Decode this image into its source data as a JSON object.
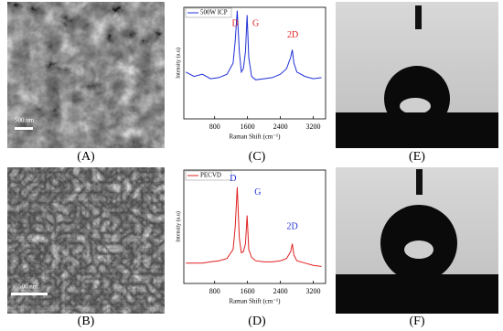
{
  "panels": [
    {
      "label": "(A)",
      "scale_bar": "500 nm"
    },
    {
      "label": "(C)"
    },
    {
      "label": "(E)"
    },
    {
      "label": "(B)",
      "scale_bar": "500 nm"
    },
    {
      "label": "(D)"
    },
    {
      "label": "(F)"
    }
  ],
  "chart_data": [
    {
      "type": "line",
      "xlabel": "Raman Shift (cm⁻¹)",
      "ylabel": "Intensity (a.u)",
      "xlim": [
        50,
        3500
      ],
      "ylim": [
        0,
        1
      ],
      "xticks": [
        800,
        1600,
        2400,
        3200
      ],
      "x": [
        100,
        300,
        500,
        700,
        900,
        1100,
        1250,
        1300,
        1350,
        1400,
        1450,
        1500,
        1550,
        1590,
        1630,
        1700,
        1800,
        2000,
        2200,
        2400,
        2550,
        2650,
        2690,
        2730,
        2800,
        3000,
        3200,
        3400
      ],
      "series": [
        {
          "name": "500W ICP",
          "color": "#1f2fd6",
          "values": [
            0.42,
            0.38,
            0.4,
            0.36,
            0.37,
            0.4,
            0.5,
            0.7,
            0.97,
            0.6,
            0.42,
            0.45,
            0.6,
            0.93,
            0.55,
            0.38,
            0.35,
            0.36,
            0.37,
            0.4,
            0.45,
            0.55,
            0.62,
            0.5,
            0.42,
            0.38,
            0.36,
            0.37
          ]
        }
      ],
      "annotations": [
        "D",
        "G",
        "2D"
      ],
      "annotation_color": "#e02020"
    },
    {
      "type": "line",
      "xlabel": "Raman Shift (cm⁻¹)",
      "ylabel": "Intensity (a.u)",
      "xlim": [
        50,
        3500
      ],
      "ylim": [
        0,
        1
      ],
      "xticks": [
        800,
        1600,
        2400,
        3200
      ],
      "x": [
        100,
        300,
        500,
        700,
        900,
        1100,
        1250,
        1300,
        1350,
        1400,
        1450,
        1500,
        1550,
        1590,
        1630,
        1700,
        1800,
        2000,
        2200,
        2400,
        2550,
        2650,
        2690,
        2730,
        2800,
        3000,
        3200,
        3400
      ],
      "series": [
        {
          "name": "PECVD",
          "color": "#e02020",
          "values": [
            0.18,
            0.18,
            0.18,
            0.19,
            0.2,
            0.22,
            0.3,
            0.5,
            0.85,
            0.4,
            0.27,
            0.28,
            0.35,
            0.6,
            0.3,
            0.23,
            0.2,
            0.19,
            0.19,
            0.2,
            0.22,
            0.28,
            0.35,
            0.25,
            0.2,
            0.18,
            0.16,
            0.15
          ]
        }
      ],
      "annotations": [
        "D",
        "G",
        "2D"
      ],
      "annotation_color": "#1f2fd6"
    }
  ]
}
